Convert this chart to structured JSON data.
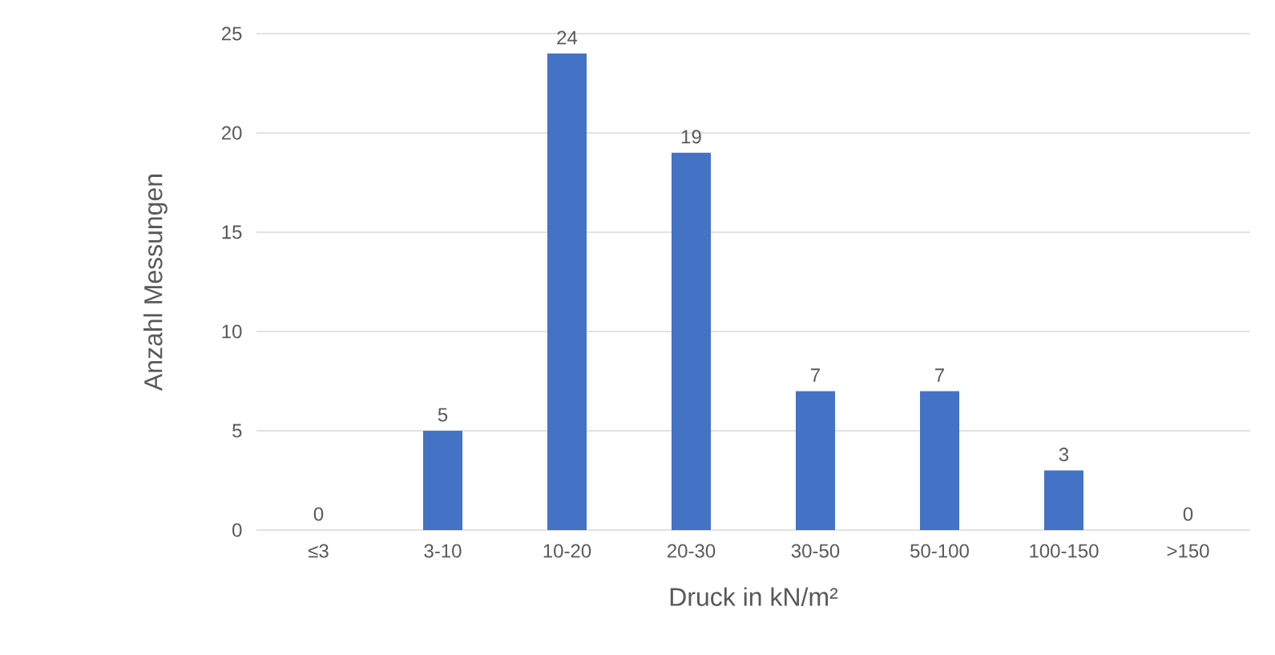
{
  "chart_data": {
    "type": "bar",
    "xlabel": "Druck in kN/m²",
    "ylabel": "Anzahl Messungen",
    "categories": [
      "≤3",
      "3-10",
      "10-20",
      "20-30",
      "30-50",
      "50-100",
      "100-150",
      ">150"
    ],
    "values": [
      0,
      5,
      24,
      19,
      7,
      7,
      3,
      0
    ],
    "color": "#4472c4",
    "ylim": [
      0,
      25
    ],
    "yticks": [
      0,
      5,
      10,
      15,
      20,
      25
    ],
    "grid": "y",
    "data_labels": true
  }
}
